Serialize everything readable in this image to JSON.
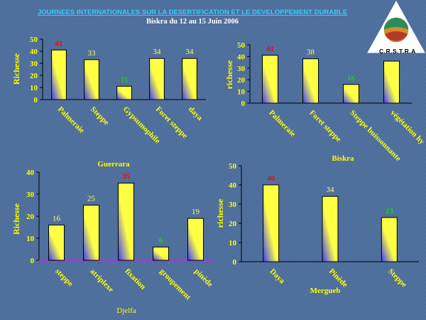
{
  "header": {
    "title": "JOURNEES INTERNATIONALES SUR LA DESERTIFICATION ET LE DEVELOPPEMENT DURABLE",
    "subtitle": "Biskra du  12 au  15 Juin  2006"
  },
  "logo": {
    "text": "C.R.S.T.R.A"
  },
  "colors": {
    "bar_top": "#ffff44",
    "bar_bottom": "#3a3aff",
    "label_red": "#e01010",
    "label_green": "#22cc22",
    "label_yellow": "#ffff66",
    "text_yellow": "#ffff00",
    "axis": "#000000",
    "baseline_purple": "#9b3dcf"
  },
  "chart_data": [
    {
      "type": "bar",
      "title": "",
      "xlabel": "",
      "ylabel": "Richesse",
      "ylim": [
        0,
        50
      ],
      "yticks": [
        0,
        10,
        20,
        30,
        40,
        50
      ],
      "categories": [
        "Palmeraie",
        "Steppe",
        "Gypsumophile",
        "Foret steppe",
        "daya"
      ],
      "values": [
        41,
        33,
        11,
        34,
        34
      ],
      "label_colors": [
        "red",
        "yellow",
        "green",
        "yellow",
        "yellow"
      ],
      "grid": false
    },
    {
      "type": "bar",
      "title": "",
      "xlabel": "Biskra",
      "ylabel": "richesse",
      "ylim": [
        0,
        50
      ],
      "yticks": [
        0,
        10,
        20,
        30,
        40,
        50
      ],
      "categories": [
        "Palmeraie",
        "Foret steppe",
        "Steppe buissonnante",
        "végétation hy"
      ],
      "values": [
        41,
        38,
        16,
        36
      ],
      "value_labels": [
        "41",
        "38",
        "16",
        ""
      ],
      "label_colors": [
        "red",
        "yellow",
        "green",
        "yellow"
      ],
      "grid": false
    },
    {
      "type": "bar",
      "title": "Guerrara",
      "xlabel": "Djelfa",
      "ylabel": "Richesse",
      "ylim": [
        0,
        40
      ],
      "yticks": [
        0,
        10,
        20,
        30,
        40
      ],
      "categories": [
        "steppe",
        "atriplexe",
        "fixation",
        "groupement",
        "pinède"
      ],
      "values": [
        16,
        25,
        35,
        6,
        19
      ],
      "label_colors": [
        "yellow",
        "yellow",
        "red",
        "green",
        "yellow"
      ],
      "grid": false
    },
    {
      "type": "bar",
      "title": "",
      "xlabel": "Mergueb",
      "ylabel": "richesse",
      "ylim": [
        0,
        50
      ],
      "yticks": [
        0,
        10,
        20,
        30,
        40,
        50
      ],
      "categories": [
        "Daya",
        "Pinède",
        "Steppe"
      ],
      "values": [
        40,
        34,
        23
      ],
      "label_colors": [
        "red",
        "yellow",
        "green"
      ],
      "grid": false
    }
  ]
}
